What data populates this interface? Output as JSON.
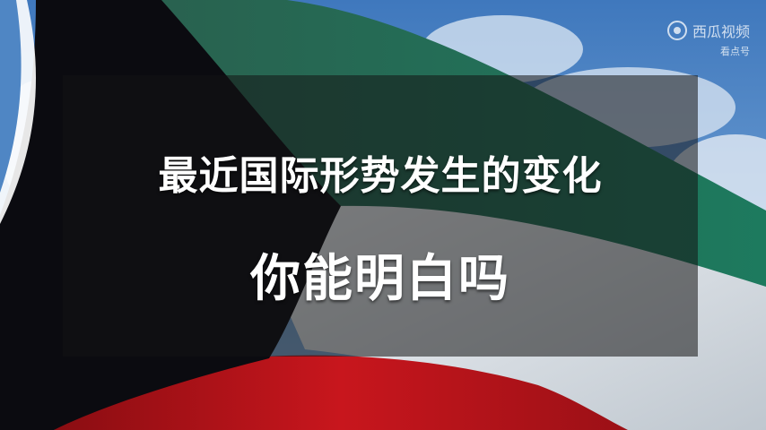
{
  "scene": {
    "flag_colors": {
      "black": "#0b0b10",
      "green": "#1f6b55",
      "white": "#e9eef2",
      "red": "#b8141a",
      "sky": "#5a8fcc"
    }
  },
  "caption": {
    "line1": "最近国际形势发生的变化",
    "line2": "你能明白吗"
  },
  "watermark": {
    "logo_icon": "play-circle-icon",
    "brand": "西瓜视频",
    "sub": "看点号"
  }
}
